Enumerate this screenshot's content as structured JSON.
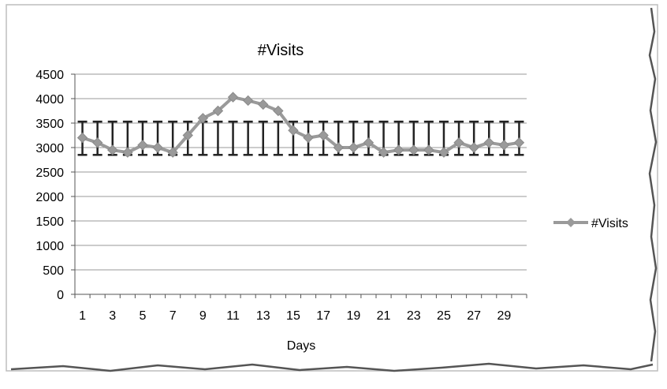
{
  "chart_data": {
    "type": "line",
    "title": "#Visits",
    "xlabel": "Days",
    "ylabel": "",
    "x": [
      1,
      2,
      3,
      4,
      5,
      6,
      7,
      8,
      9,
      10,
      11,
      12,
      13,
      14,
      15,
      16,
      17,
      18,
      19,
      20,
      21,
      22,
      23,
      24,
      25,
      26,
      27,
      28,
      29,
      30
    ],
    "x_tick_labels": [
      "1",
      "3",
      "5",
      "7",
      "9",
      "11",
      "13",
      "15",
      "17",
      "19",
      "21",
      "23",
      "25",
      "27",
      "29"
    ],
    "ylim": [
      0,
      4500
    ],
    "y_ticks": [
      0,
      500,
      1000,
      1500,
      2000,
      2500,
      3000,
      3500,
      4000,
      4500
    ],
    "grid": true,
    "legend_position": "right",
    "series": [
      {
        "name": "#Visits",
        "values": [
          3200,
          3100,
          2950,
          2900,
          3050,
          3000,
          2900,
          3250,
          3600,
          3750,
          4030,
          3960,
          3880,
          3750,
          3350,
          3200,
          3250,
          3000,
          3000,
          3100,
          2900,
          2950,
          2950,
          2950,
          2900,
          3100,
          3000,
          3100,
          3050,
          3100
        ],
        "error_bar_low": 2850,
        "error_bar_high": 3530,
        "color": "#9a9a9a"
      }
    ]
  }
}
